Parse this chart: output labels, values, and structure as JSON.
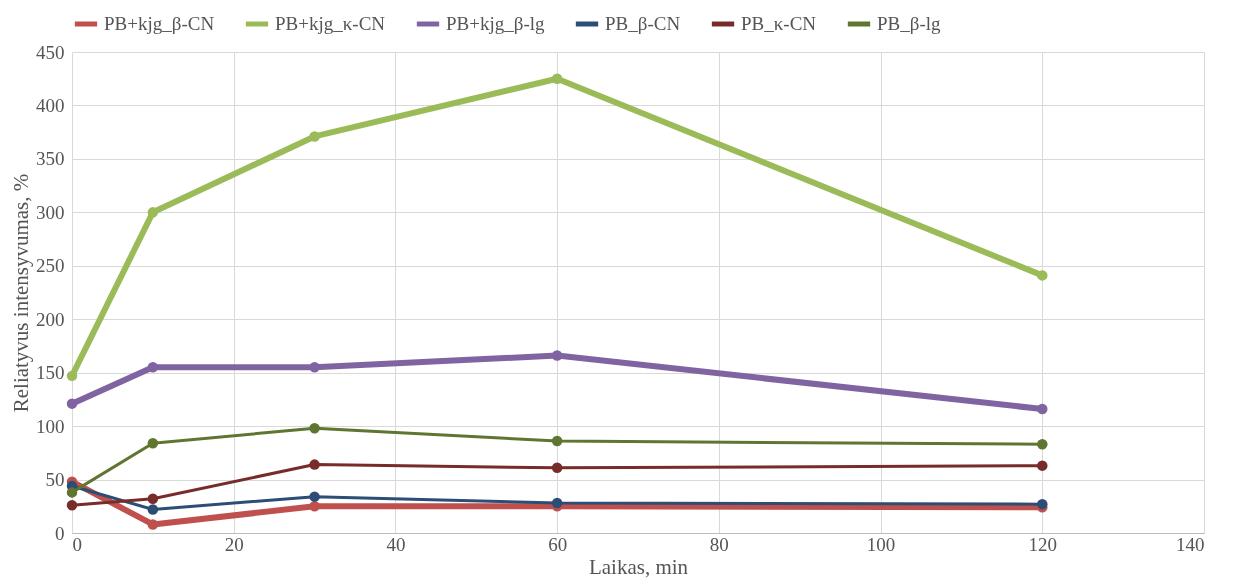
{
  "chart_data": {
    "type": "line",
    "xlabel": "Laikas, min",
    "ylabel": "Reliatyvus intensyvumas, %",
    "x": [
      0,
      10,
      30,
      60,
      120
    ],
    "series": [
      {
        "name": "PB+kjg_β-CN",
        "color": "#c0504d",
        "values": [
          48,
          8,
          25,
          25,
          24
        ]
      },
      {
        "name": "PB+kjg_κ-CN",
        "color": "#9bbb59",
        "values": [
          147,
          300,
          371,
          425,
          241
        ]
      },
      {
        "name": "PB+kjg_β-lg",
        "color": "#8064a2",
        "values": [
          121,
          155,
          155,
          166,
          116
        ]
      },
      {
        "name": "PB_β-CN",
        "color": "#2c4d75",
        "values": [
          44,
          22,
          34,
          28,
          27
        ]
      },
      {
        "name": "PB_κ-CN",
        "color": "#772c2a",
        "values": [
          26,
          32,
          64,
          61,
          63
        ]
      },
      {
        "name": "PB_β-lg",
        "color": "#5f7530",
        "values": [
          38,
          84,
          98,
          86,
          83
        ]
      }
    ],
    "xlim": [
      0,
      140
    ],
    "xticks": [
      0,
      20,
      40,
      60,
      80,
      100,
      120,
      140
    ],
    "ylim": [
      0,
      450
    ],
    "yticks": [
      0,
      50,
      100,
      150,
      200,
      250,
      300,
      350,
      400,
      450
    ],
    "grid": true,
    "legend": "top",
    "marker": "circle",
    "line_style": "solid"
  }
}
